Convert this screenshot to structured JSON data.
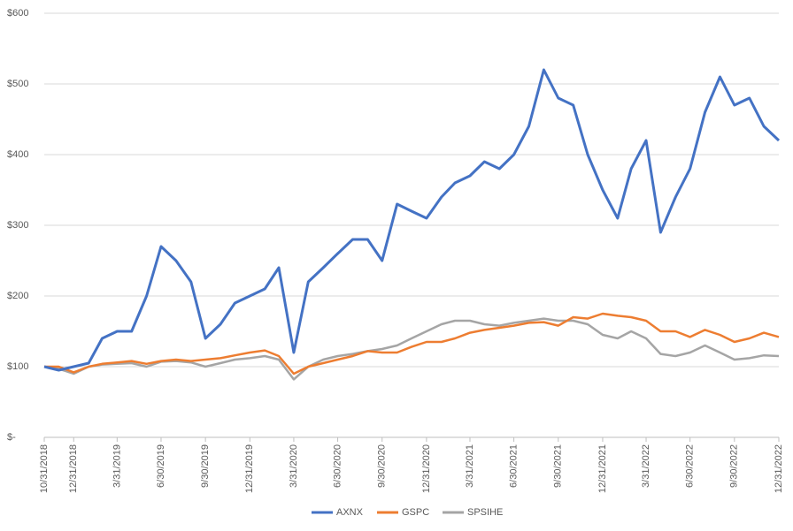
{
  "chart_data": {
    "type": "line",
    "x": [
      "10/31/2018",
      "11/30/2018",
      "12/31/2018",
      "1/31/2019",
      "2/28/2019",
      "3/31/2019",
      "4/30/2019",
      "5/31/2019",
      "6/30/2019",
      "7/31/2019",
      "8/31/2019",
      "9/30/2019",
      "10/31/2019",
      "11/30/2019",
      "12/31/2019",
      "1/31/2020",
      "2/29/2020",
      "3/31/2020",
      "4/30/2020",
      "5/31/2020",
      "6/30/2020",
      "7/31/2020",
      "8/31/2020",
      "9/30/2020",
      "10/31/2020",
      "11/30/2020",
      "12/31/2020",
      "1/31/2021",
      "2/28/2021",
      "3/31/2021",
      "4/30/2021",
      "5/31/2021",
      "6/30/2021",
      "7/31/2021",
      "8/31/2021",
      "9/30/2021",
      "10/31/2021",
      "11/30/2021",
      "12/31/2021",
      "1/31/2022",
      "2/28/2022",
      "3/31/2022",
      "4/30/2022",
      "5/31/2022",
      "6/30/2022",
      "7/31/2022",
      "8/31/2022",
      "9/30/2022",
      "10/31/2022",
      "11/30/2022",
      "12/31/2022"
    ],
    "series": [
      {
        "name": "AXNX",
        "color": "#4472c4",
        "values": [
          100,
          95,
          100,
          105,
          140,
          150,
          150,
          200,
          270,
          250,
          220,
          140,
          160,
          190,
          200,
          210,
          240,
          120,
          220,
          240,
          260,
          280,
          280,
          250,
          330,
          320,
          310,
          340,
          360,
          370,
          390,
          380,
          400,
          440,
          520,
          480,
          470,
          400,
          350,
          310,
          380,
          420,
          290,
          340,
          380,
          460,
          510,
          470,
          480,
          440,
          420
        ]
      },
      {
        "name": "GSPC",
        "color": "#ed7d31",
        "values": [
          100,
          100,
          92,
          100,
          104,
          106,
          108,
          104,
          108,
          110,
          108,
          110,
          112,
          116,
          120,
          123,
          115,
          90,
          100,
          105,
          110,
          115,
          122,
          120,
          120,
          128,
          135,
          135,
          140,
          148,
          152,
          155,
          158,
          162,
          163,
          158,
          170,
          168,
          175,
          172,
          170,
          165,
          150,
          150,
          142,
          152,
          145,
          135,
          140,
          148,
          142
        ]
      },
      {
        "name": "SPSIHE",
        "color": "#a5a5a5",
        "values": [
          100,
          97,
          90,
          100,
          103,
          104,
          105,
          100,
          107,
          108,
          106,
          100,
          105,
          110,
          112,
          115,
          110,
          82,
          100,
          110,
          115,
          118,
          122,
          125,
          130,
          140,
          150,
          160,
          165,
          165,
          160,
          158,
          162,
          165,
          168,
          165,
          165,
          160,
          145,
          140,
          150,
          140,
          118,
          115,
          120,
          130,
          120,
          110,
          112,
          116,
          115
        ]
      }
    ],
    "ylim": [
      0,
      600
    ],
    "yticks": [
      {
        "value": 0,
        "label": "$-"
      },
      {
        "value": 100,
        "label": "$100"
      },
      {
        "value": 200,
        "label": "$200"
      },
      {
        "value": 300,
        "label": "$300"
      },
      {
        "value": 400,
        "label": "$400"
      },
      {
        "value": 500,
        "label": "$500"
      },
      {
        "value": 600,
        "label": "$600"
      }
    ],
    "xticks": [
      "10/31/2018",
      "12/31/2018",
      "3/31/2019",
      "6/30/2019",
      "9/30/2019",
      "12/31/2019",
      "3/31/2020",
      "6/30/2020",
      "9/30/2020",
      "12/31/2020",
      "3/31/2021",
      "6/30/2021",
      "9/30/2021",
      "12/31/2021",
      "3/31/2022",
      "6/30/2022",
      "9/30/2022",
      "12/31/2022"
    ],
    "grid": true,
    "legend": "bottom"
  }
}
